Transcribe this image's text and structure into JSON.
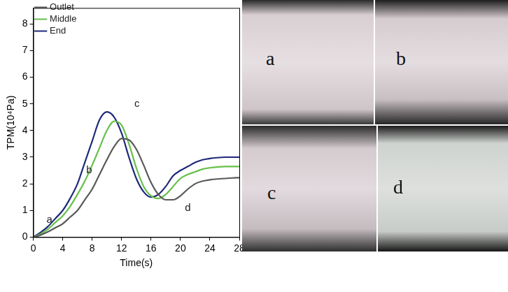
{
  "chart_data": {
    "type": "line",
    "x_label": "Time(s)",
    "y_label": "TPM(10⁴Pa)",
    "x": [
      0,
      1,
      2,
      3,
      4,
      5,
      6,
      7,
      8,
      9,
      10,
      11,
      12,
      13,
      14,
      15,
      16,
      17,
      18,
      19,
      20,
      21,
      22,
      23,
      24,
      25,
      26,
      27,
      28
    ],
    "series": [
      {
        "name": "Outlet",
        "color": "#595959",
        "values": [
          0,
          0.08,
          0.2,
          0.35,
          0.5,
          0.75,
          1.0,
          1.4,
          1.8,
          2.35,
          2.9,
          3.4,
          3.7,
          3.65,
          3.3,
          2.7,
          2.05,
          1.6,
          1.4,
          1.4,
          1.55,
          1.8,
          2.0,
          2.1,
          2.15,
          2.18,
          2.2,
          2.22,
          2.23
        ]
      },
      {
        "name": "Middle",
        "color": "#66c04a",
        "values": [
          0,
          0.12,
          0.3,
          0.55,
          0.8,
          1.15,
          1.6,
          2.1,
          2.7,
          3.35,
          4.0,
          4.35,
          4.2,
          3.5,
          2.6,
          1.9,
          1.55,
          1.45,
          1.6,
          1.9,
          2.2,
          2.35,
          2.45,
          2.55,
          2.6,
          2.63,
          2.65,
          2.65,
          2.65
        ]
      },
      {
        "name": "End",
        "color": "#1f2a7a",
        "values": [
          0,
          0.18,
          0.4,
          0.7,
          1.0,
          1.45,
          2.0,
          2.8,
          3.6,
          4.4,
          4.7,
          4.5,
          3.9,
          3.0,
          2.2,
          1.7,
          1.5,
          1.6,
          1.9,
          2.3,
          2.5,
          2.65,
          2.8,
          2.9,
          2.95,
          2.98,
          3.0,
          3.0,
          3.0
        ]
      }
    ],
    "xlim": [
      0,
      28
    ],
    "ylim": [
      0,
      8.6
    ],
    "xticks": [
      0,
      4,
      8,
      12,
      16,
      20,
      24,
      28
    ],
    "yticks": [
      0,
      1,
      2,
      3,
      4,
      5,
      6,
      7,
      8
    ],
    "grid": false,
    "legend": "top-left",
    "annotations": [
      {
        "text": "a",
        "x": 2.2,
        "y": 0.65
      },
      {
        "text": "b",
        "x": 7.6,
        "y": 2.5
      },
      {
        "text": "c",
        "x": 14.1,
        "y": 5.0
      },
      {
        "text": "d",
        "x": 21.0,
        "y": 1.1
      }
    ]
  },
  "photos": [
    {
      "label": "a"
    },
    {
      "label": "b"
    },
    {
      "label": "c"
    },
    {
      "label": "d"
    }
  ]
}
